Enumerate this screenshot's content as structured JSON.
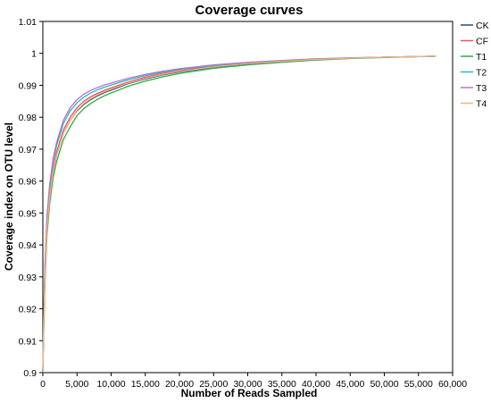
{
  "chart_data": {
    "type": "line",
    "title": "Coverage curves",
    "xlabel": "Number of Reads Sampled",
    "ylabel": "Coverage index on OTU level",
    "xlim": [
      0,
      60000
    ],
    "ylim": [
      0.9,
      1.01
    ],
    "x_ticks": [
      "0",
      "5,000",
      "10,000",
      "15,000",
      "20,000",
      "25,000",
      "30,000",
      "35,000",
      "40,000",
      "45,000",
      "50,000",
      "55,000",
      "60,000"
    ],
    "y_ticks": [
      "0.9",
      "0.91",
      "0.92",
      "0.93",
      "0.94",
      "0.95",
      "0.96",
      "0.97",
      "0.98",
      "0.99",
      "1",
      "1.01"
    ],
    "grid": false,
    "legend_position": "right",
    "x": [
      0,
      100,
      300,
      600,
      1000,
      1500,
      2000,
      3000,
      4000,
      5000,
      6000,
      7000,
      8000,
      9000,
      10000,
      12500,
      15000,
      17500,
      20000,
      25000,
      30000,
      35000,
      40000,
      45000,
      50000,
      55000,
      57500
    ],
    "series": [
      {
        "name": "CK",
        "color": "#1f4e79",
        "values": [
          0.9,
          0.912,
          0.93,
          0.945,
          0.955,
          0.963,
          0.968,
          0.975,
          0.979,
          0.982,
          0.984,
          0.9855,
          0.9867,
          0.9877,
          0.9885,
          0.9905,
          0.992,
          0.9932,
          0.9942,
          0.9957,
          0.9967,
          0.9975,
          0.9981,
          0.9985,
          0.9988,
          0.999,
          0.9991
        ]
      },
      {
        "name": "CF",
        "color": "#e8525f",
        "values": [
          0.9,
          0.913,
          0.931,
          0.946,
          0.956,
          0.964,
          0.969,
          0.976,
          0.98,
          0.983,
          0.985,
          0.9864,
          0.9875,
          0.9884,
          0.9892,
          0.991,
          0.9925,
          0.9937,
          0.9946,
          0.996,
          0.9969,
          0.9976,
          0.9981,
          0.9985,
          0.9988,
          0.999,
          0.9991
        ]
      },
      {
        "name": "T1",
        "color": "#2eaa4a",
        "values": [
          0.9,
          0.911,
          0.928,
          0.943,
          0.953,
          0.961,
          0.966,
          0.973,
          0.977,
          0.9805,
          0.9827,
          0.9843,
          0.9856,
          0.9867,
          0.9876,
          0.9897,
          0.9913,
          0.9926,
          0.9937,
          0.9953,
          0.9964,
          0.9972,
          0.9979,
          0.9984,
          0.9987,
          0.999,
          0.9991
        ]
      },
      {
        "name": "T2",
        "color": "#2bb5c8",
        "values": [
          0.9,
          0.914,
          0.933,
          0.948,
          0.958,
          0.966,
          0.971,
          0.978,
          0.982,
          0.9845,
          0.9863,
          0.9876,
          0.9886,
          0.9894,
          0.9901,
          0.9917,
          0.993,
          0.9941,
          0.995,
          0.9962,
          0.9971,
          0.9977,
          0.9982,
          0.9986,
          0.9988,
          0.999,
          0.9991
        ]
      },
      {
        "name": "T3",
        "color": "#b572c6",
        "values": [
          0.9,
          0.915,
          0.934,
          0.949,
          0.959,
          0.967,
          0.972,
          0.979,
          0.983,
          0.9855,
          0.9872,
          0.9884,
          0.9893,
          0.9901,
          0.9907,
          0.9922,
          0.9934,
          0.9944,
          0.9952,
          0.9964,
          0.9972,
          0.9978,
          0.9983,
          0.9986,
          0.9988,
          0.999,
          0.9991
        ]
      },
      {
        "name": "T4",
        "color": "#f5b27a",
        "values": [
          0.9,
          0.913,
          0.93,
          0.945,
          0.955,
          0.963,
          0.968,
          0.975,
          0.979,
          0.9822,
          0.9843,
          0.9858,
          0.987,
          0.988,
          0.9888,
          0.9907,
          0.9922,
          0.9934,
          0.9944,
          0.9958,
          0.9968,
          0.9975,
          0.9981,
          0.9985,
          0.9988,
          0.999,
          0.9991
        ]
      }
    ]
  }
}
